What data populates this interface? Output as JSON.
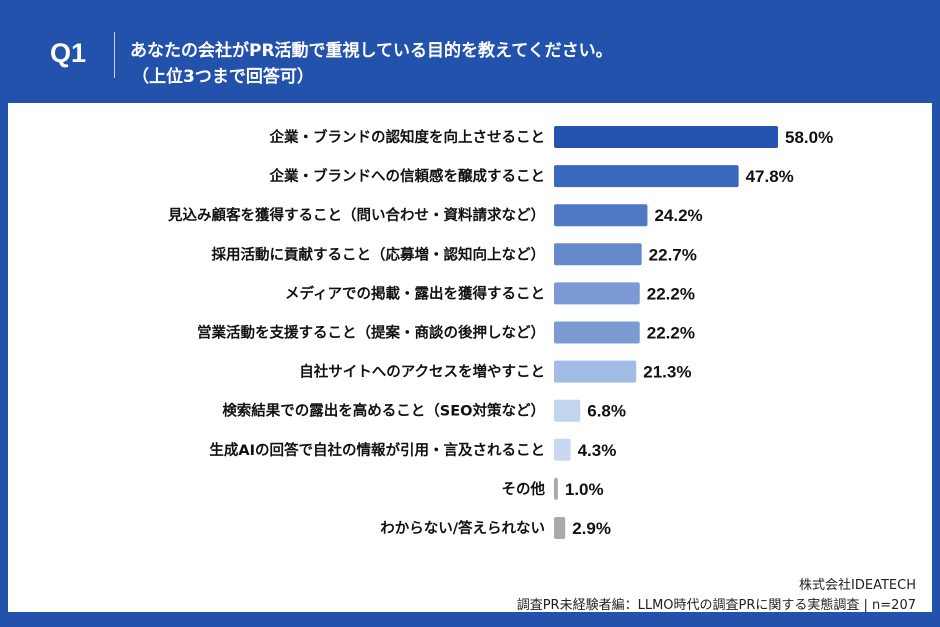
{
  "header": {
    "q_label": "Q1",
    "question": "あなたの会社がPR活動で重視している目的を教えてください。",
    "note": "（上位3つまで回答可）"
  },
  "chart_data": {
    "type": "bar",
    "orientation": "horizontal",
    "categories": [
      "企業・ブランドの認知度を向上させること",
      "企業・ブランドへの信頼感を醸成すること",
      "見込み顧客を獲得すること（問い合わせ・資料請求など）",
      "採用活動に貢献すること（応募増・認知向上など）",
      "メディアでの掲載・露出を獲得すること",
      "営業活動を支援すること（提案・商談の後押しなど）",
      "自社サイトへのアクセスを増やすこと",
      "検索結果での露出を高めること（SEO対策など）",
      "生成AIの回答で自社の情報が引用・言及されること",
      "その他",
      "わからない/答えられない"
    ],
    "values": [
      58.0,
      47.8,
      24.2,
      22.7,
      22.2,
      22.2,
      21.3,
      6.8,
      4.3,
      1.0,
      2.9
    ],
    "value_labels": [
      "58.0%",
      "47.8%",
      "24.2%",
      "22.7%",
      "22.2%",
      "22.2%",
      "21.3%",
      "6.8%",
      "4.3%",
      "1.0%",
      "2.9%"
    ],
    "colors": [
      "#2453b0",
      "#3a68bd",
      "#5078c4",
      "#6689cc",
      "#7b9ad3",
      "#7d9bd3",
      "#a2bce5",
      "#c3d4ee",
      "#c8d8f0",
      "#aaaaaa",
      "#aaaaaa"
    ],
    "xlim": [
      0,
      58
    ],
    "grid": false,
    "legend": "none"
  },
  "footer": {
    "company": "株式会社IDEATECH",
    "source": "調査PR未経験者編：LLMO時代の調査PRに関する実態調査 | n=207"
  }
}
